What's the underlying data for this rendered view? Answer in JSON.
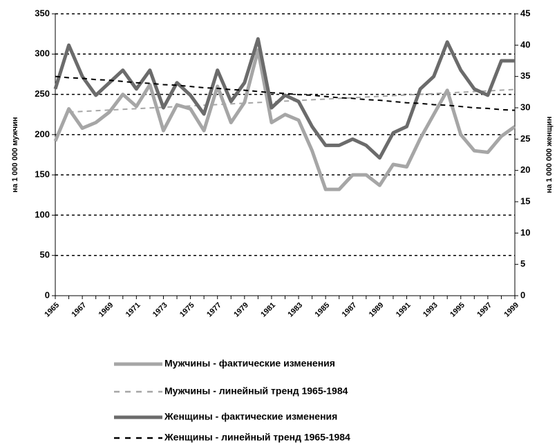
{
  "chart_data": {
    "type": "line",
    "categories": [
      "1965",
      null,
      "1967",
      null,
      "1969",
      null,
      "1971",
      null,
      "1973",
      null,
      "1975",
      null,
      "1977",
      null,
      "1979",
      null,
      "1981",
      null,
      "1983",
      null,
      "1985",
      null,
      "1987",
      null,
      "1989",
      null,
      "1991",
      null,
      "1993",
      null,
      "1995",
      null,
      "1997",
      null,
      "1999"
    ],
    "ylabel": "на 1 000 000 мужчин",
    "y2label": "на 1 000 000 женщин",
    "ylim": [
      0,
      350
    ],
    "yticks": [
      0,
      50,
      100,
      150,
      200,
      250,
      300,
      350
    ],
    "y2lim": [
      0,
      45
    ],
    "y2ticks": [
      0,
      5,
      10,
      15,
      20,
      25,
      30,
      35,
      40,
      45
    ],
    "grid": true,
    "legend": "bottom",
    "series": [
      {
        "name": "Мужчины - фактические изменения",
        "color": "#a6a6a6",
        "style": "solid",
        "axis": "y",
        "values": [
          192,
          232,
          208,
          215,
          228,
          250,
          235,
          262,
          205,
          237,
          232,
          205,
          260,
          215,
          240,
          305,
          215,
          225,
          218,
          180,
          132,
          132,
          150,
          150,
          137,
          163,
          160,
          195,
          225,
          255,
          200,
          180,
          178,
          198,
          210
        ]
      },
      {
        "name": "Мужчины - линейный тренд 1965-1984",
        "color": "#a6a6a6",
        "style": "dashed",
        "axis": "y",
        "values": [
          null,
          228,
          228.8,
          229.7,
          230.5,
          231.4,
          232.2,
          233.1,
          233.9,
          234.8,
          235.6,
          236.5,
          237.3,
          238.2,
          239,
          239.9,
          240.7,
          241.6,
          242.4,
          243.3,
          244.1,
          245,
          245.8,
          246.7,
          247.5,
          248.4,
          249.2,
          250.1,
          250.9,
          251.8,
          252.6,
          253.5,
          254.3,
          255.2,
          256
        ]
      },
      {
        "name": "Женщины - фактические изменения",
        "color": "#6b6b6b",
        "style": "solid",
        "axis": "y2",
        "values": [
          33,
          40,
          35,
          32,
          34,
          36,
          33,
          36,
          30,
          34,
          32,
          29,
          36,
          31,
          34,
          41,
          30,
          32,
          31,
          27,
          24,
          24,
          25,
          24,
          22,
          26,
          27,
          33,
          35,
          40.5,
          36,
          33,
          32,
          37.5,
          37.5
        ]
      },
      {
        "name": "Женщины - линейный тренд 1965-1984",
        "color": "#000000",
        "style": "dashed",
        "axis": "y2",
        "values": [
          35,
          34.8,
          34.7,
          34.5,
          34.4,
          34.2,
          34,
          33.9,
          33.7,
          33.6,
          33.4,
          33.2,
          33.1,
          32.9,
          32.8,
          32.6,
          32.4,
          32.3,
          32.1,
          32,
          31.8,
          31.6,
          31.5,
          31.3,
          31.2,
          31,
          30.8,
          30.7,
          30.5,
          30.4,
          30.2,
          30,
          29.9,
          29.7,
          29.6
        ]
      }
    ]
  }
}
